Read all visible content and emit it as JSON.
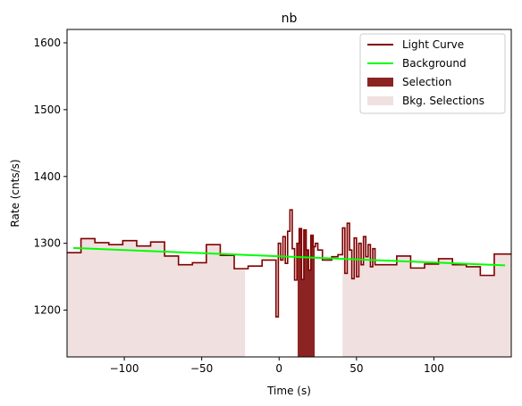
{
  "chart_data": {
    "type": "line",
    "title": "nb",
    "xlabel": "Time (s)",
    "ylabel": "Rate (cnts/s)",
    "xlim": [
      -137,
      150
    ],
    "ylim": [
      1130,
      1620
    ],
    "xticks": [
      -100,
      -50,
      0,
      50,
      100
    ],
    "yticks": [
      1200,
      1300,
      1400,
      1500,
      1600
    ],
    "grid": false,
    "legend_position": "top-right",
    "colors": {
      "light_curve": "#800000",
      "background": "#00ff00",
      "selection": "#8b2323",
      "bkg_selections": "#f0e0e0"
    },
    "series": [
      {
        "name": "Light Curve",
        "kind": "step",
        "points": [
          [
            -137,
            1286
          ],
          [
            -128,
            1307
          ],
          [
            -119,
            1301
          ],
          [
            -110,
            1298
          ],
          [
            -101,
            1304
          ],
          [
            -92,
            1296
          ],
          [
            -83,
            1302
          ],
          [
            -74,
            1281
          ],
          [
            -65,
            1268
          ],
          [
            -56,
            1271
          ],
          [
            -47,
            1298
          ],
          [
            -38,
            1282
          ],
          [
            -29,
            1262
          ],
          [
            -20,
            1266
          ],
          [
            -11,
            1275
          ],
          [
            -2,
            1190
          ],
          [
            -0.5,
            1300
          ],
          [
            1,
            1275
          ],
          [
            2.5,
            1310
          ],
          [
            4,
            1270
          ],
          [
            5.5,
            1318
          ],
          [
            7,
            1350
          ],
          [
            8.5,
            1292
          ],
          [
            10,
            1245
          ],
          [
            11.5,
            1300
          ],
          [
            13,
            1322
          ],
          [
            14.5,
            1246
          ],
          [
            16,
            1320
          ],
          [
            17.5,
            1290
          ],
          [
            19,
            1260
          ],
          [
            20.5,
            1312
          ],
          [
            22,
            1295
          ],
          [
            23.5,
            1300
          ],
          [
            25,
            1290
          ],
          [
            28,
            1275
          ],
          [
            34,
            1280
          ],
          [
            38,
            1283
          ],
          [
            41,
            1323
          ],
          [
            42.5,
            1255
          ],
          [
            44,
            1330
          ],
          [
            45.5,
            1290
          ],
          [
            47,
            1247
          ],
          [
            48.5,
            1308
          ],
          [
            50,
            1250
          ],
          [
            51.5,
            1300
          ],
          [
            53,
            1268
          ],
          [
            54.5,
            1310
          ],
          [
            56,
            1280
          ],
          [
            57.5,
            1298
          ],
          [
            59,
            1265
          ],
          [
            60.5,
            1292
          ],
          [
            62,
            1268
          ],
          [
            67,
            1268
          ],
          [
            76,
            1281
          ],
          [
            85,
            1263
          ],
          [
            94,
            1269
          ],
          [
            103,
            1277
          ],
          [
            112,
            1268
          ],
          [
            121,
            1265
          ],
          [
            130,
            1252
          ],
          [
            139,
            1284
          ],
          [
            150,
            1284
          ]
        ]
      },
      {
        "name": "Background",
        "kind": "line",
        "points": [
          [
            -133,
            1293
          ],
          [
            146,
            1267
          ]
        ]
      },
      {
        "name": "Selection",
        "kind": "span",
        "range": [
          12,
          23
        ]
      },
      {
        "name": "Bkg. Selections",
        "kind": "span",
        "ranges": [
          [
            -137,
            -22
          ],
          [
            41,
            150
          ]
        ]
      }
    ]
  }
}
